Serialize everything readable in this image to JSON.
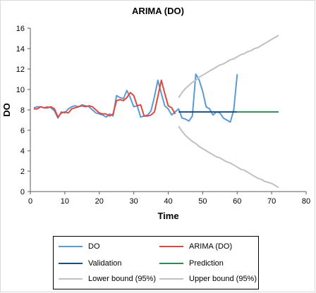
{
  "chart_data": {
    "type": "line",
    "title": "ARIMA (DO)",
    "xlabel": "Time",
    "ylabel": "DO",
    "xlim": [
      0,
      80
    ],
    "ylim": [
      0,
      16
    ],
    "xticks": [
      0,
      10,
      20,
      30,
      40,
      50,
      60,
      70,
      80
    ],
    "yticks": [
      0,
      2,
      4,
      6,
      8,
      10,
      12,
      14,
      16
    ],
    "grid": false,
    "legend_position": "bottom",
    "series": [
      {
        "name": "DO",
        "color": "#5b9bd5",
        "x": [
          1,
          2,
          3,
          4,
          5,
          6,
          7,
          8,
          9,
          10,
          11,
          12,
          13,
          14,
          15,
          16,
          17,
          18,
          19,
          20,
          21,
          22,
          23,
          24,
          25,
          26,
          27,
          28,
          29,
          30,
          31,
          32,
          33,
          34,
          35,
          36,
          37,
          38,
          39,
          40,
          41,
          42,
          43,
          44,
          45,
          46,
          47,
          48,
          49,
          50,
          51,
          52,
          53,
          54,
          55,
          56,
          57,
          58,
          59,
          60
        ],
        "y": [
          8.2,
          8.3,
          8.3,
          8.2,
          8.3,
          8.2,
          7.9,
          7.2,
          7.8,
          7.7,
          8.1,
          8.3,
          8.4,
          8.3,
          8.5,
          8.4,
          8.3,
          8.0,
          7.7,
          7.6,
          7.5,
          7.3,
          7.6,
          7.4,
          9.4,
          9.2,
          9.1,
          9.9,
          9.2,
          8.3,
          8.4,
          7.3,
          7.4,
          7.5,
          7.9,
          9.3,
          10.9,
          9.6,
          8.4,
          8.1,
          7.5,
          7.8,
          8.1,
          7.2,
          7.1,
          6.9,
          7.4,
          11.5,
          10.9,
          9.8,
          8.3,
          8.1,
          7.5,
          7.8,
          7.7,
          7.2,
          7.0,
          6.8,
          8.0,
          11.5
        ]
      },
      {
        "name": "ARIMA (DO)",
        "color": "#e2473f",
        "x": [
          1,
          2,
          3,
          4,
          5,
          6,
          7,
          8,
          9,
          10,
          11,
          12,
          13,
          14,
          15,
          16,
          17,
          18,
          19,
          20,
          21,
          22,
          23,
          24,
          25,
          26,
          27,
          28,
          29,
          30,
          31,
          32,
          33,
          34,
          35,
          36,
          37,
          38,
          39,
          40,
          41,
          42
        ],
        "y": [
          8.1,
          8.1,
          8.3,
          8.2,
          8.2,
          8.3,
          8.1,
          7.3,
          7.7,
          7.8,
          7.7,
          8.1,
          8.2,
          8.3,
          8.4,
          8.3,
          8.4,
          8.3,
          8.0,
          7.7,
          7.6,
          7.6,
          7.4,
          7.6,
          8.9,
          9.0,
          8.9,
          9.2,
          9.7,
          9.4,
          8.4,
          8.5,
          7.4,
          7.4,
          7.5,
          7.8,
          9.3,
          10.9,
          9.6,
          8.4,
          8.2,
          7.6
        ]
      },
      {
        "name": "Validation",
        "color": "#1f4e79",
        "x": [
          43,
          44,
          45,
          46,
          47,
          48,
          49,
          50,
          51,
          52,
          53,
          54,
          55,
          56,
          57,
          58,
          59,
          60
        ],
        "y": [
          7.8,
          7.8,
          7.8,
          7.8,
          7.8,
          7.8,
          7.8,
          7.8,
          7.8,
          7.8,
          7.8,
          7.8,
          7.8,
          7.8,
          7.8,
          7.8,
          7.8,
          7.8
        ]
      },
      {
        "name": "Prediction",
        "color": "#2e8b57",
        "x": [
          60,
          61,
          62,
          63,
          64,
          65,
          66,
          67,
          68,
          69,
          70,
          71,
          72
        ],
        "y": [
          7.8,
          7.8,
          7.8,
          7.8,
          7.8,
          7.8,
          7.8,
          7.8,
          7.8,
          7.8,
          7.8,
          7.8,
          7.8
        ]
      },
      {
        "name": "Lower bound (95%)",
        "color": "#c0c0c0",
        "x": [
          43,
          44,
          45,
          46,
          47,
          48,
          49,
          50,
          51,
          52,
          53,
          54,
          55,
          56,
          57,
          58,
          59,
          60,
          61,
          62,
          63,
          64,
          65,
          66,
          67,
          68,
          69,
          70,
          71,
          72
        ],
        "y": [
          6.4,
          5.9,
          5.5,
          5.2,
          4.9,
          4.7,
          4.4,
          4.2,
          4.0,
          3.8,
          3.6,
          3.4,
          3.3,
          3.1,
          2.9,
          2.8,
          2.6,
          2.4,
          2.2,
          2.1,
          1.9,
          1.7,
          1.5,
          1.3,
          1.2,
          1.0,
          0.9,
          0.8,
          0.6,
          0.4
        ]
      },
      {
        "name": "Upper bound (95%)",
        "color": "#c0c0c0",
        "x": [
          43,
          44,
          45,
          46,
          47,
          48,
          49,
          50,
          51,
          52,
          53,
          54,
          55,
          56,
          57,
          58,
          59,
          60,
          61,
          62,
          63,
          64,
          65,
          66,
          67,
          68,
          69,
          70,
          71,
          72
        ],
        "y": [
          9.2,
          9.7,
          10.1,
          10.4,
          10.7,
          10.9,
          11.2,
          11.4,
          11.6,
          11.8,
          12.0,
          12.2,
          12.4,
          12.5,
          12.7,
          12.9,
          13.0,
          13.2,
          13.4,
          13.5,
          13.7,
          13.8,
          14.0,
          14.1,
          14.3,
          14.5,
          14.7,
          14.9,
          15.1,
          15.3
        ]
      }
    ]
  }
}
